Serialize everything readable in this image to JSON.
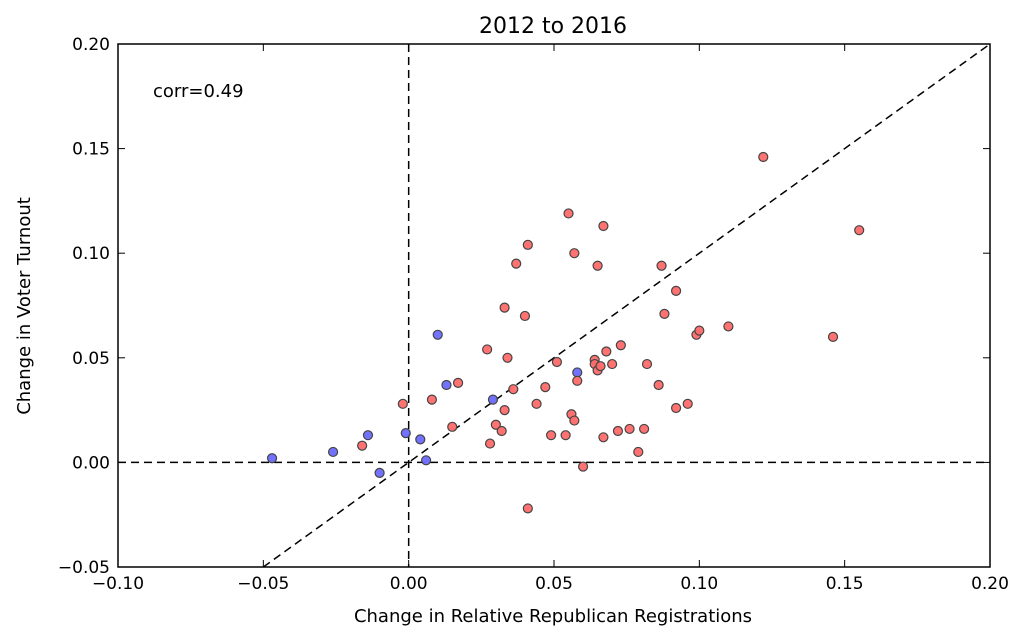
{
  "chart_data": {
    "type": "scatter",
    "title": "2012 to 2016",
    "xlabel": "Change in Relative Republican Registrations",
    "ylabel": "Change in Voter Turnout",
    "xlim": [
      -0.1,
      0.2
    ],
    "ylim": [
      -0.05,
      0.2
    ],
    "xticks": [
      -0.1,
      -0.05,
      0.0,
      0.05,
      0.1,
      0.15,
      0.2
    ],
    "yticks": [
      -0.05,
      0.0,
      0.05,
      0.1,
      0.15,
      0.2
    ],
    "xtick_labels": [
      "−0.10",
      "−0.05",
      "0.00",
      "0.05",
      "0.10",
      "0.15",
      "0.20"
    ],
    "ytick_labels": [
      "−0.05",
      "0.00",
      "0.05",
      "0.10",
      "0.15",
      "0.20"
    ],
    "annotation": "corr=0.49",
    "grid": false,
    "reference_lines": [
      {
        "kind": "vertical",
        "x": 0.0,
        "style": "dashed"
      },
      {
        "kind": "horizontal",
        "y": 0.0,
        "style": "dashed"
      },
      {
        "kind": "diagonal",
        "from": [
          -0.05,
          -0.05
        ],
        "to": [
          0.2,
          0.2
        ],
        "style": "dashed"
      }
    ],
    "colors": {
      "red": "#ff6a6a",
      "blue": "#6a6aff",
      "edge": "#444444"
    },
    "series": [
      {
        "color": "blue",
        "points": [
          [
            -0.047,
            0.002
          ],
          [
            -0.026,
            0.005
          ],
          [
            -0.014,
            0.013
          ],
          [
            -0.01,
            -0.005
          ],
          [
            -0.001,
            0.014
          ],
          [
            0.004,
            0.011
          ],
          [
            0.006,
            0.001
          ],
          [
            0.01,
            0.061
          ],
          [
            0.013,
            0.037
          ],
          [
            0.029,
            0.03
          ],
          [
            0.058,
            0.043
          ]
        ]
      },
      {
        "color": "red",
        "points": [
          [
            -0.016,
            0.008
          ],
          [
            -0.002,
            0.028
          ],
          [
            0.008,
            0.03
          ],
          [
            0.015,
            0.017
          ],
          [
            0.017,
            0.038
          ],
          [
            0.027,
            0.054
          ],
          [
            0.028,
            0.009
          ],
          [
            0.03,
            0.018
          ],
          [
            0.032,
            0.015
          ],
          [
            0.033,
            0.074
          ],
          [
            0.033,
            0.025
          ],
          [
            0.034,
            0.05
          ],
          [
            0.036,
            0.035
          ],
          [
            0.037,
            0.095
          ],
          [
            0.04,
            0.07
          ],
          [
            0.041,
            0.104
          ],
          [
            0.041,
            -0.022
          ],
          [
            0.044,
            0.028
          ],
          [
            0.047,
            0.036
          ],
          [
            0.049,
            0.013
          ],
          [
            0.051,
            0.048
          ],
          [
            0.054,
            0.013
          ],
          [
            0.055,
            0.119
          ],
          [
            0.056,
            0.023
          ],
          [
            0.057,
            0.02
          ],
          [
            0.057,
            0.1
          ],
          [
            0.058,
            0.039
          ],
          [
            0.06,
            -0.002
          ],
          [
            0.064,
            0.049
          ],
          [
            0.064,
            0.047
          ],
          [
            0.065,
            0.044
          ],
          [
            0.065,
            0.094
          ],
          [
            0.066,
            0.046
          ],
          [
            0.067,
            0.113
          ],
          [
            0.067,
            0.012
          ],
          [
            0.068,
            0.053
          ],
          [
            0.07,
            0.047
          ],
          [
            0.072,
            0.015
          ],
          [
            0.073,
            0.056
          ],
          [
            0.076,
            0.016
          ],
          [
            0.079,
            0.005
          ],
          [
            0.081,
            0.016
          ],
          [
            0.082,
            0.047
          ],
          [
            0.086,
            0.037
          ],
          [
            0.087,
            0.094
          ],
          [
            0.088,
            0.071
          ],
          [
            0.092,
            0.082
          ],
          [
            0.092,
            0.026
          ],
          [
            0.096,
            0.028
          ],
          [
            0.099,
            0.061
          ],
          [
            0.1,
            0.063
          ],
          [
            0.11,
            0.065
          ],
          [
            0.122,
            0.146
          ],
          [
            0.146,
            0.06
          ],
          [
            0.155,
            0.111
          ]
        ]
      }
    ]
  }
}
